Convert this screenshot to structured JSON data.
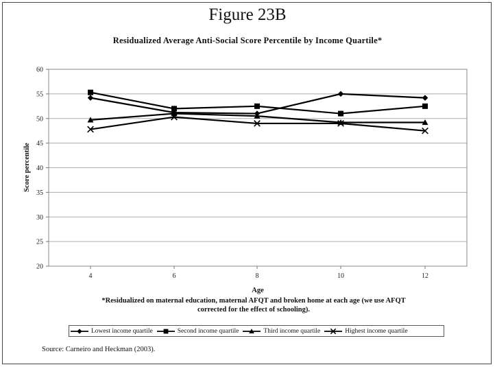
{
  "figure_label": "Figure 23B",
  "footnote_line1": "*Residualized on maternal education, maternal AFQT and broken home at each age (we use AFQT",
  "footnote_line2": "corrected for the effect of schooling).",
  "source": "Source: Carneiro and Heckman (2003).",
  "chart_data": {
    "type": "line",
    "title": "Residualized Average Anti-Social Score Percentile by Income Quartile*",
    "xlabel": "Age",
    "ylabel": "Score percentile",
    "x": [
      4,
      6,
      8,
      10,
      12
    ],
    "ylim": [
      20,
      60
    ],
    "yticks": [
      20,
      25,
      30,
      35,
      40,
      45,
      50,
      55,
      60
    ],
    "grid": "horizontal",
    "legend_position": "bottom",
    "series": [
      {
        "name": "Lowest income quartile",
        "marker": "diamond",
        "values": [
          54.2,
          51.2,
          51.0,
          55.0,
          54.2
        ]
      },
      {
        "name": "Second income quartile",
        "marker": "square",
        "values": [
          55.3,
          52.0,
          52.5,
          51.0,
          52.5
        ]
      },
      {
        "name": "Third income quartile",
        "marker": "triangle",
        "values": [
          49.7,
          51.0,
          50.5,
          49.2,
          49.2
        ]
      },
      {
        "name": "Highest income quartile",
        "marker": "x",
        "values": [
          47.8,
          50.3,
          49.0,
          49.0,
          47.5
        ]
      }
    ]
  }
}
